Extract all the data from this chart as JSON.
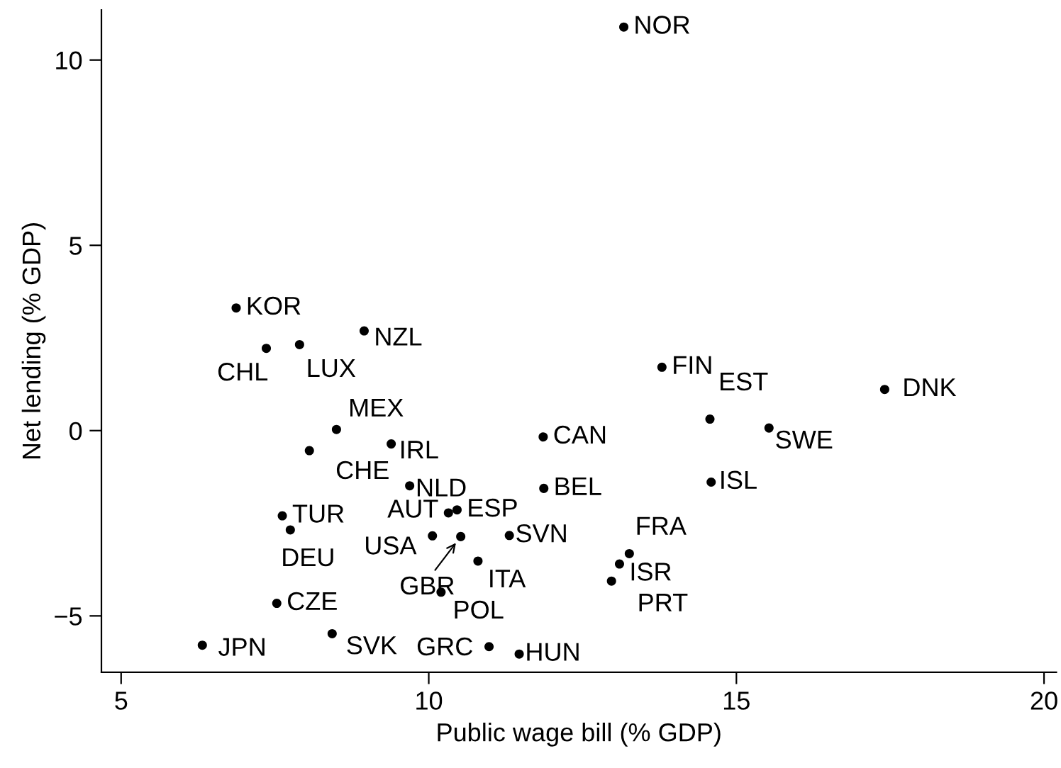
{
  "chart_data": {
    "type": "scatter",
    "xlabel": "Public wage bill (% GDP)",
    "ylabel": "Net lending (% GDP)",
    "xlim": [
      4.68,
      20.2
    ],
    "ylim": [
      -6.52,
      11.35
    ],
    "xticks": [
      5,
      10,
      15,
      20
    ],
    "yticks": [
      -5,
      0,
      5,
      10
    ],
    "grid": false,
    "marker": "circle",
    "series": [
      {
        "color": "#000000",
        "x": [
          6.87,
          7.36,
          7.9,
          8.95,
          8.5,
          8.06,
          9.39,
          9.69,
          7.62,
          7.75,
          10.32,
          10.46,
          10.06,
          10.52,
          10.8,
          10.2,
          11.31,
          7.53,
          6.32,
          8.43,
          10.98,
          11.47,
          13.17,
          13.79,
          14.57,
          15.53,
          17.41,
          11.86,
          11.87,
          14.59,
          13.26,
          13.1,
          12.97
        ],
        "values": [
          3.31,
          2.22,
          2.32,
          2.69,
          0.03,
          -0.54,
          -0.36,
          -1.49,
          -2.3,
          -2.68,
          -2.22,
          -2.14,
          -2.84,
          -2.86,
          -3.52,
          -4.36,
          -2.83,
          -4.66,
          -5.79,
          -5.48,
          -5.83,
          -6.03,
          10.89,
          1.71,
          0.31,
          0.07,
          1.11,
          -0.17,
          -1.56,
          -1.39,
          -3.32,
          -3.6,
          -4.06
        ]
      }
    ],
    "annotations": [
      {
        "text": "KOR",
        "x": 6.87,
        "y": 3.31
      },
      {
        "text": "CHL",
        "x": 7.36,
        "y": 2.22
      },
      {
        "text": "LUX",
        "x": 7.9,
        "y": 2.32
      },
      {
        "text": "NZL",
        "x": 8.95,
        "y": 2.69
      },
      {
        "text": "MEX",
        "x": 8.5,
        "y": 0.03
      },
      {
        "text": "CHE",
        "x": 8.06,
        "y": -0.54
      },
      {
        "text": "IRL",
        "x": 9.39,
        "y": -0.36
      },
      {
        "text": "NLD",
        "x": 9.69,
        "y": -1.49
      },
      {
        "text": "TUR",
        "x": 7.62,
        "y": -2.3
      },
      {
        "text": "DEU",
        "x": 7.75,
        "y": -2.68
      },
      {
        "text": "AUT",
        "x": 10.32,
        "y": -2.22
      },
      {
        "text": "ESP",
        "x": 10.46,
        "y": -2.14
      },
      {
        "text": "USA",
        "x": 10.06,
        "y": -2.84
      },
      {
        "text": "GBR",
        "x": 10.52,
        "y": -2.86
      },
      {
        "text": "ITA",
        "x": 10.8,
        "y": -3.52
      },
      {
        "text": "POL",
        "x": 10.2,
        "y": -4.36
      },
      {
        "text": "SVN",
        "x": 11.31,
        "y": -2.83
      },
      {
        "text": "CZE",
        "x": 7.53,
        "y": -4.66
      },
      {
        "text": "JPN",
        "x": 6.32,
        "y": -5.79
      },
      {
        "text": "SVK",
        "x": 8.43,
        "y": -5.48
      },
      {
        "text": "GRC",
        "x": 10.98,
        "y": -5.83
      },
      {
        "text": "HUN",
        "x": 11.47,
        "y": -6.03
      },
      {
        "text": "NOR",
        "x": 13.17,
        "y": 10.89
      },
      {
        "text": "FIN",
        "x": 13.79,
        "y": 1.71
      },
      {
        "text": "EST",
        "x": 14.57,
        "y": 0.31
      },
      {
        "text": "SWE",
        "x": 15.53,
        "y": 0.07
      },
      {
        "text": "DNK",
        "x": 17.41,
        "y": 1.11
      },
      {
        "text": "CAN",
        "x": 11.86,
        "y": -0.17
      },
      {
        "text": "BEL",
        "x": 11.87,
        "y": -1.56
      },
      {
        "text": "ISL",
        "x": 14.59,
        "y": -1.39
      },
      {
        "text": "FRA",
        "x": 13.26,
        "y": -3.32
      },
      {
        "text": "ISR",
        "x": 13.1,
        "y": -3.6
      },
      {
        "text": "PRT",
        "x": 12.97,
        "y": -4.06
      }
    ]
  }
}
